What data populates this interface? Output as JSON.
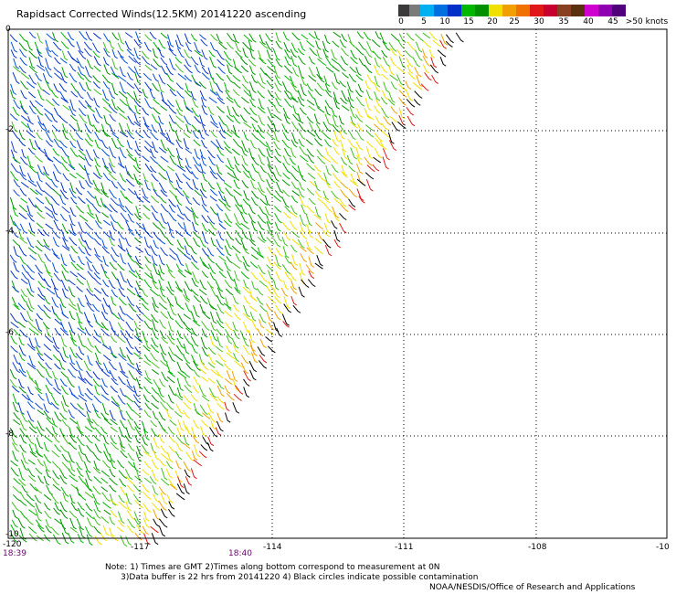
{
  "title": "Rapidsact Corrected Winds(12.5KM) 20141220 ascending",
  "legend": {
    "colors": [
      "#3a3a3a",
      "#7a7a7a",
      "#00b0f0",
      "#0070e0",
      "#0030c8",
      "#00b800",
      "#009000",
      "#f0e000",
      "#f0a000",
      "#f07000",
      "#e01818",
      "#c80030",
      "#8a4020",
      "#5a3010",
      "#d000d0",
      "#9000b0",
      "#50007a"
    ],
    "labels": [
      "0",
      "5",
      "10",
      "15",
      "20",
      "25",
      "30",
      "35",
      "40",
      "45",
      ">50 knots"
    ]
  },
  "axes": {
    "x_ticks": [
      "-120",
      "-117",
      "-114",
      "-111",
      "-108",
      "-10"
    ],
    "y_ticks": [
      "0",
      "-2",
      "-4",
      "-6",
      "-8",
      "-10"
    ]
  },
  "times": {
    "left": "18:39",
    "center": "18:40"
  },
  "notes": [
    "Note: 1) Times are GMT 2)Times along bottom correspond to measurement at 0N",
    "      3)Data buffer is 22 hrs from 20141220 4) Black circles indicate possible contamination"
  ],
  "credit": "NOAA/NESDIS/Office of Research and Applications"
}
